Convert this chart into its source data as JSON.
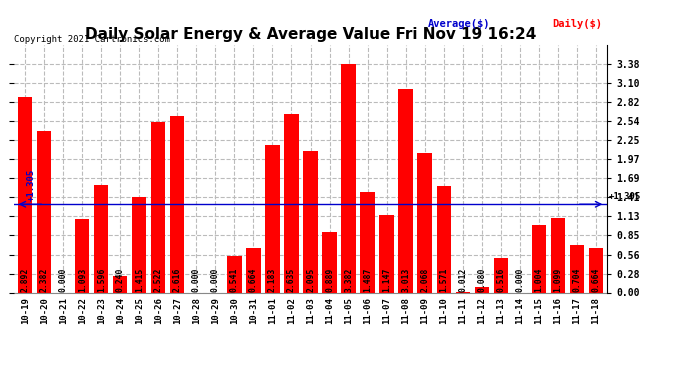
{
  "title": "Daily Solar Energy & Average Value Fri Nov 19 16:24",
  "copyright": "Copyright 2021 Cartronics.com",
  "legend_average": "Average($)",
  "legend_daily": "Daily($)",
  "average_line": 1.305,
  "categories": [
    "10-19",
    "10-20",
    "10-21",
    "10-22",
    "10-23",
    "10-24",
    "10-25",
    "10-26",
    "10-27",
    "10-28",
    "10-29",
    "10-30",
    "10-31",
    "11-01",
    "11-02",
    "11-03",
    "11-04",
    "11-05",
    "11-06",
    "11-07",
    "11-08",
    "11-09",
    "11-10",
    "11-11",
    "11-12",
    "11-13",
    "11-14",
    "11-15",
    "11-16",
    "11-17",
    "11-18"
  ],
  "values": [
    2.892,
    2.382,
    0.0,
    1.093,
    1.596,
    0.24,
    1.415,
    2.522,
    2.616,
    0.0,
    0.0,
    0.541,
    0.664,
    2.183,
    2.635,
    2.095,
    0.889,
    3.382,
    1.487,
    1.147,
    3.013,
    2.068,
    1.571,
    0.012,
    0.08,
    0.516,
    0.0,
    1.004,
    1.099,
    0.704,
    0.664
  ],
  "bar_color": "#ff0000",
  "avg_line_color": "#0000cc",
  "background_color": "#ffffff",
  "grid_color": "#bbbbbb",
  "ylim": [
    0,
    3.66
  ],
  "yticks": [
    0.0,
    0.28,
    0.56,
    0.85,
    1.13,
    1.41,
    1.69,
    1.97,
    2.25,
    2.54,
    2.82,
    3.1,
    3.38
  ],
  "title_fontsize": 11,
  "tick_fontsize": 7,
  "value_fontsize": 5.8,
  "xlabel_fontsize": 6.5
}
